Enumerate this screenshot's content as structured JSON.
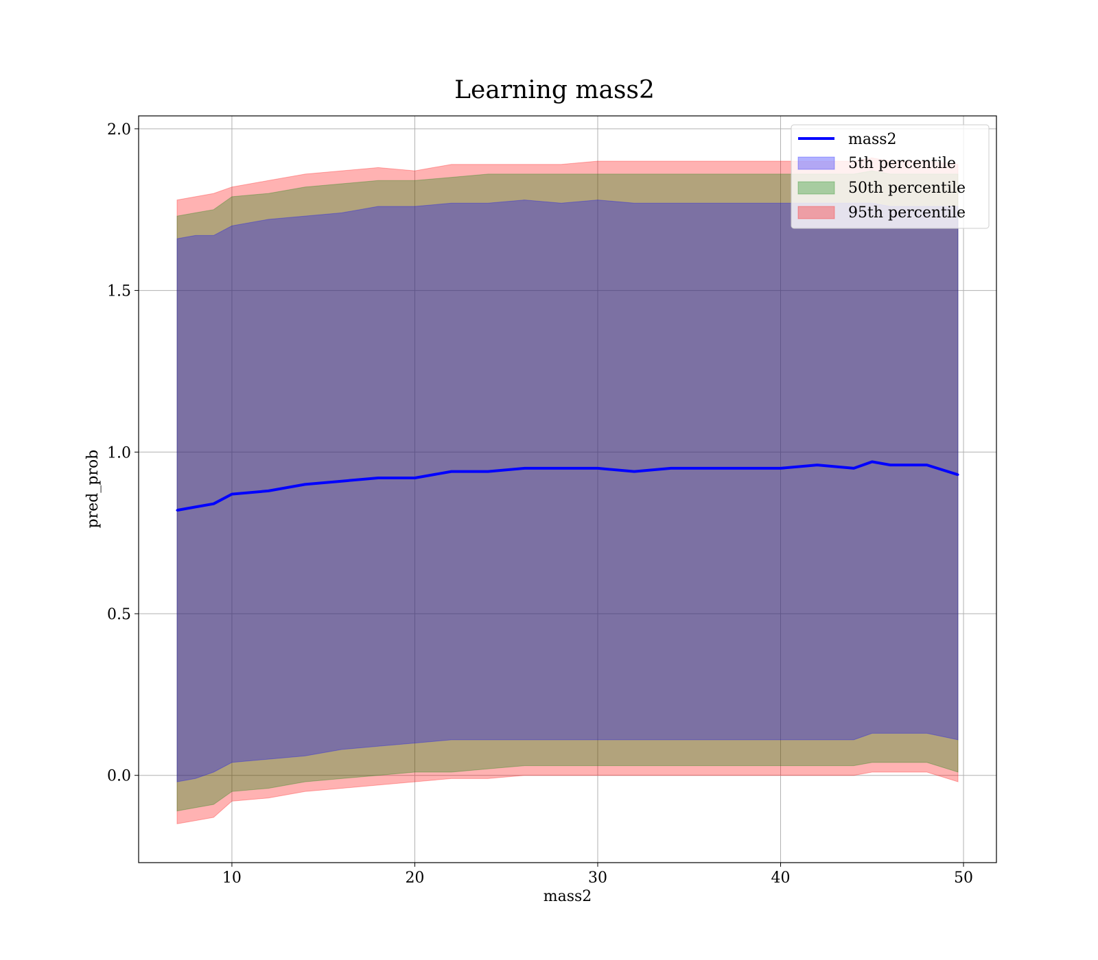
{
  "chart_data": {
    "type": "area",
    "title": "Learning mass2",
    "xlabel": "mass2",
    "ylabel": "pred_prob",
    "xlim": [
      4.9,
      51.8
    ],
    "ylim": [
      -0.27,
      2.04
    ],
    "xticks": [
      10,
      20,
      30,
      40,
      50
    ],
    "yticks": [
      0.0,
      0.5,
      1.0,
      1.5,
      2.0
    ],
    "xtick_labels": [
      "10",
      "20",
      "30",
      "40",
      "50"
    ],
    "ytick_labels": [
      "0.0",
      "0.5",
      "1.0",
      "1.5",
      "2.0"
    ],
    "grid": true,
    "legend_position": "top-right",
    "x": [
      7,
      8,
      9,
      10,
      12,
      14,
      16,
      18,
      20,
      22,
      24,
      26,
      28,
      30,
      32,
      34,
      36,
      38,
      40,
      42,
      44,
      45,
      46,
      48,
      49.7
    ],
    "series": [
      {
        "name": "mass2",
        "kind": "line",
        "color": "#0000ff",
        "values": [
          0.82,
          0.83,
          0.84,
          0.87,
          0.88,
          0.9,
          0.91,
          0.92,
          0.92,
          0.94,
          0.94,
          0.95,
          0.95,
          0.95,
          0.94,
          0.95,
          0.95,
          0.95,
          0.95,
          0.96,
          0.95,
          0.97,
          0.96,
          0.96,
          0.93
        ]
      },
      {
        "name": "5th percentile",
        "kind": "band",
        "color": "#0000ff",
        "lower": [
          -0.02,
          -0.01,
          0.01,
          0.04,
          0.05,
          0.06,
          0.08,
          0.09,
          0.1,
          0.11,
          0.11,
          0.11,
          0.11,
          0.11,
          0.11,
          0.11,
          0.11,
          0.11,
          0.11,
          0.11,
          0.11,
          0.13,
          0.13,
          0.13,
          0.11
        ],
        "upper": [
          1.66,
          1.67,
          1.67,
          1.7,
          1.72,
          1.73,
          1.74,
          1.76,
          1.76,
          1.77,
          1.77,
          1.78,
          1.77,
          1.78,
          1.77,
          1.77,
          1.77,
          1.77,
          1.77,
          1.77,
          1.77,
          1.77,
          1.76,
          1.76,
          1.76
        ]
      },
      {
        "name": "50th percentile",
        "kind": "band",
        "color": "#008000",
        "lower": [
          -0.11,
          -0.1,
          -0.09,
          -0.05,
          -0.04,
          -0.02,
          -0.01,
          0.0,
          0.01,
          0.01,
          0.02,
          0.03,
          0.03,
          0.03,
          0.03,
          0.03,
          0.03,
          0.03,
          0.03,
          0.03,
          0.03,
          0.04,
          0.04,
          0.04,
          0.01
        ],
        "upper": [
          1.73,
          1.74,
          1.75,
          1.79,
          1.8,
          1.82,
          1.83,
          1.84,
          1.84,
          1.85,
          1.86,
          1.86,
          1.86,
          1.86,
          1.86,
          1.86,
          1.86,
          1.86,
          1.86,
          1.86,
          1.86,
          1.87,
          1.86,
          1.86,
          1.86
        ]
      },
      {
        "name": "95th percentile",
        "kind": "band",
        "color": "#ff0000",
        "lower": [
          -0.15,
          -0.14,
          -0.13,
          -0.08,
          -0.07,
          -0.05,
          -0.04,
          -0.03,
          -0.02,
          -0.01,
          -0.01,
          0.0,
          0.0,
          0.0,
          0.0,
          0.0,
          0.0,
          0.0,
          0.0,
          0.0,
          0.0,
          0.01,
          0.01,
          0.01,
          -0.02
        ],
        "upper": [
          1.78,
          1.79,
          1.8,
          1.82,
          1.84,
          1.86,
          1.87,
          1.88,
          1.87,
          1.89,
          1.89,
          1.89,
          1.89,
          1.9,
          1.9,
          1.9,
          1.9,
          1.9,
          1.9,
          1.9,
          1.9,
          1.91,
          1.9,
          1.9,
          1.89
        ]
      }
    ]
  }
}
